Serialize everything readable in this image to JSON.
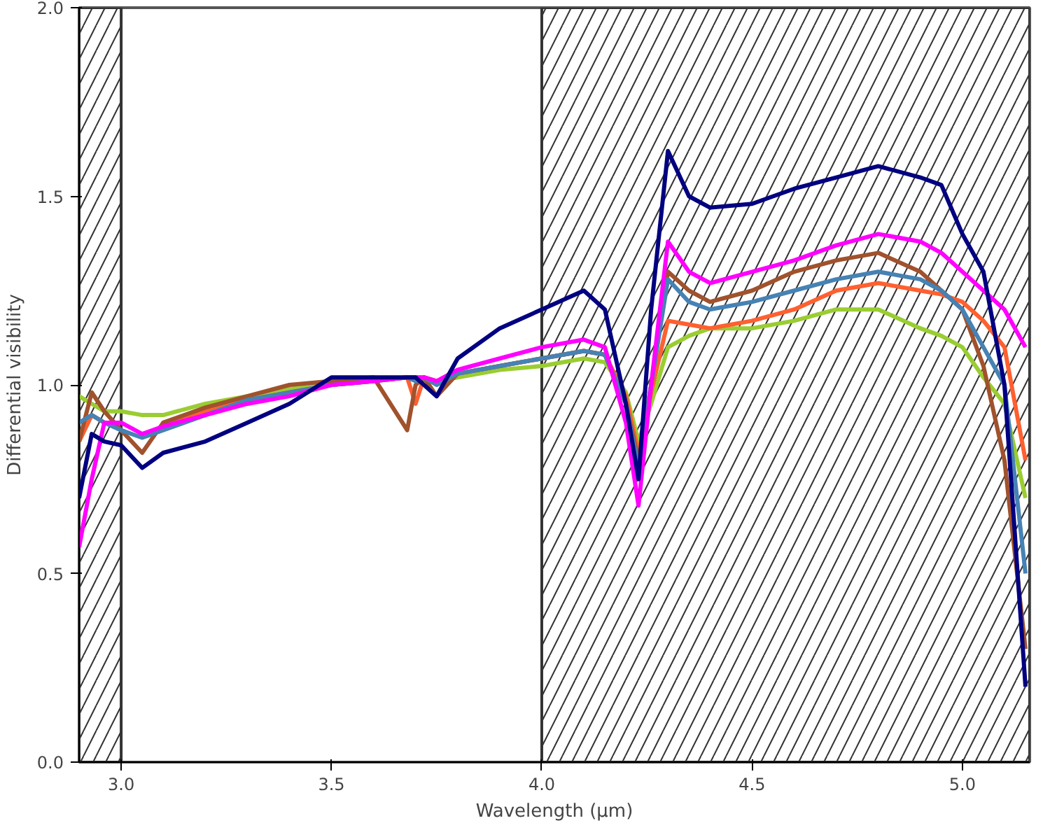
{
  "chart_data": {
    "type": "line",
    "xlabel": "Wavelength (μm)",
    "ylabel": "Differential visibility",
    "x": [
      2.9,
      2.93,
      2.96,
      3.0,
      3.05,
      3.1,
      3.2,
      3.3,
      3.4,
      3.5,
      3.6,
      3.68,
      3.7,
      3.72,
      3.75,
      3.8,
      3.9,
      4.0,
      4.1,
      4.15,
      4.2,
      4.23,
      4.26,
      4.3,
      4.35,
      4.4,
      4.5,
      4.6,
      4.7,
      4.8,
      4.9,
      4.95,
      5.0,
      5.05,
      5.1,
      5.15
    ],
    "series": [
      {
        "color": "#9acd32",
        "values": [
          0.97,
          0.95,
          0.93,
          0.93,
          0.92,
          0.92,
          0.95,
          0.97,
          0.99,
          1.0,
          1.01,
          1.02,
          1.02,
          1.02,
          1.01,
          1.02,
          1.04,
          1.05,
          1.07,
          1.06,
          0.98,
          0.85,
          0.95,
          1.1,
          1.13,
          1.15,
          1.15,
          1.17,
          1.2,
          1.2,
          1.15,
          1.13,
          1.1,
          1.02,
          0.95,
          0.7
        ]
      },
      {
        "color": "#ff6030",
        "values": [
          0.85,
          0.92,
          0.9,
          0.9,
          null,
          0.89,
          0.93,
          0.96,
          0.98,
          1.0,
          1.01,
          1.02,
          0.95,
          1.02,
          1.01,
          1.03,
          1.05,
          1.07,
          1.09,
          1.08,
          0.97,
          0.82,
          0.98,
          1.17,
          1.16,
          1.15,
          1.17,
          1.2,
          1.25,
          1.27,
          1.25,
          1.24,
          1.22,
          1.17,
          1.1,
          0.8
        ]
      },
      {
        "color": "#a0522d",
        "values": [
          0.85,
          0.98,
          0.93,
          0.88,
          0.82,
          0.9,
          0.94,
          0.97,
          1.0,
          1.01,
          1.02,
          0.88,
          1.0,
          1.02,
          0.97,
          1.03,
          1.05,
          1.07,
          1.09,
          1.08,
          0.95,
          0.8,
          1.0,
          1.3,
          1.25,
          1.22,
          1.25,
          1.3,
          1.33,
          1.35,
          1.3,
          1.25,
          1.2,
          1.05,
          0.8,
          0.3
        ]
      },
      {
        "color": "#4682b4",
        "values": [
          0.9,
          0.92,
          0.9,
          0.88,
          0.86,
          0.88,
          0.92,
          0.96,
          0.98,
          1.0,
          1.01,
          1.02,
          1.01,
          1.02,
          1.0,
          1.03,
          1.05,
          1.07,
          1.09,
          1.08,
          0.95,
          0.78,
          1.0,
          1.28,
          1.22,
          1.2,
          1.22,
          1.25,
          1.28,
          1.3,
          1.28,
          1.25,
          1.2,
          1.1,
          1.0,
          0.5
        ]
      },
      {
        "color": "#ff00ff",
        "values": [
          0.57,
          0.75,
          0.9,
          0.9,
          0.87,
          0.89,
          0.92,
          0.95,
          0.97,
          1.0,
          1.01,
          1.02,
          1.02,
          1.02,
          1.01,
          1.04,
          1.07,
          1.1,
          1.12,
          1.1,
          0.9,
          0.68,
          1.0,
          1.38,
          1.3,
          1.27,
          1.3,
          1.33,
          1.37,
          1.4,
          1.38,
          1.35,
          1.3,
          1.25,
          1.2,
          1.1
        ]
      },
      {
        "color": "#000080",
        "values": [
          0.7,
          0.87,
          0.85,
          0.84,
          0.78,
          0.82,
          0.85,
          0.9,
          0.95,
          1.02,
          1.02,
          1.02,
          1.02,
          1.0,
          0.97,
          1.07,
          1.15,
          1.2,
          1.25,
          1.2,
          0.95,
          0.75,
          1.2,
          1.62,
          1.5,
          1.47,
          1.48,
          1.52,
          1.55,
          1.58,
          1.55,
          1.53,
          1.4,
          1.3,
          1.0,
          0.2
        ]
      }
    ],
    "xlim": [
      2.9,
      5.16
    ],
    "ylim": [
      0.0,
      2.0
    ],
    "xticks": [
      {
        "value": 3.0,
        "label": "3.0"
      },
      {
        "value": 3.5,
        "label": "3.5"
      },
      {
        "value": 4.0,
        "label": "4.0"
      },
      {
        "value": 4.5,
        "label": "4.5"
      },
      {
        "value": 5.0,
        "label": "5.0"
      }
    ],
    "yticks": [
      {
        "value": 0.0,
        "label": "0.0"
      },
      {
        "value": 0.5,
        "label": "0.5"
      },
      {
        "value": 1.0,
        "label": "1.0"
      },
      {
        "value": 1.5,
        "label": "1.5"
      },
      {
        "value": 2.0,
        "label": "2.0"
      }
    ],
    "bands": [
      {
        "axis": "x",
        "from": 2.9,
        "to": 3.0,
        "color": "#333333"
      },
      {
        "axis": "x",
        "from": 4.0,
        "to": 5.16,
        "color": "#333333"
      }
    ],
    "grid": false,
    "marker": "none",
    "line_style": "solid"
  }
}
